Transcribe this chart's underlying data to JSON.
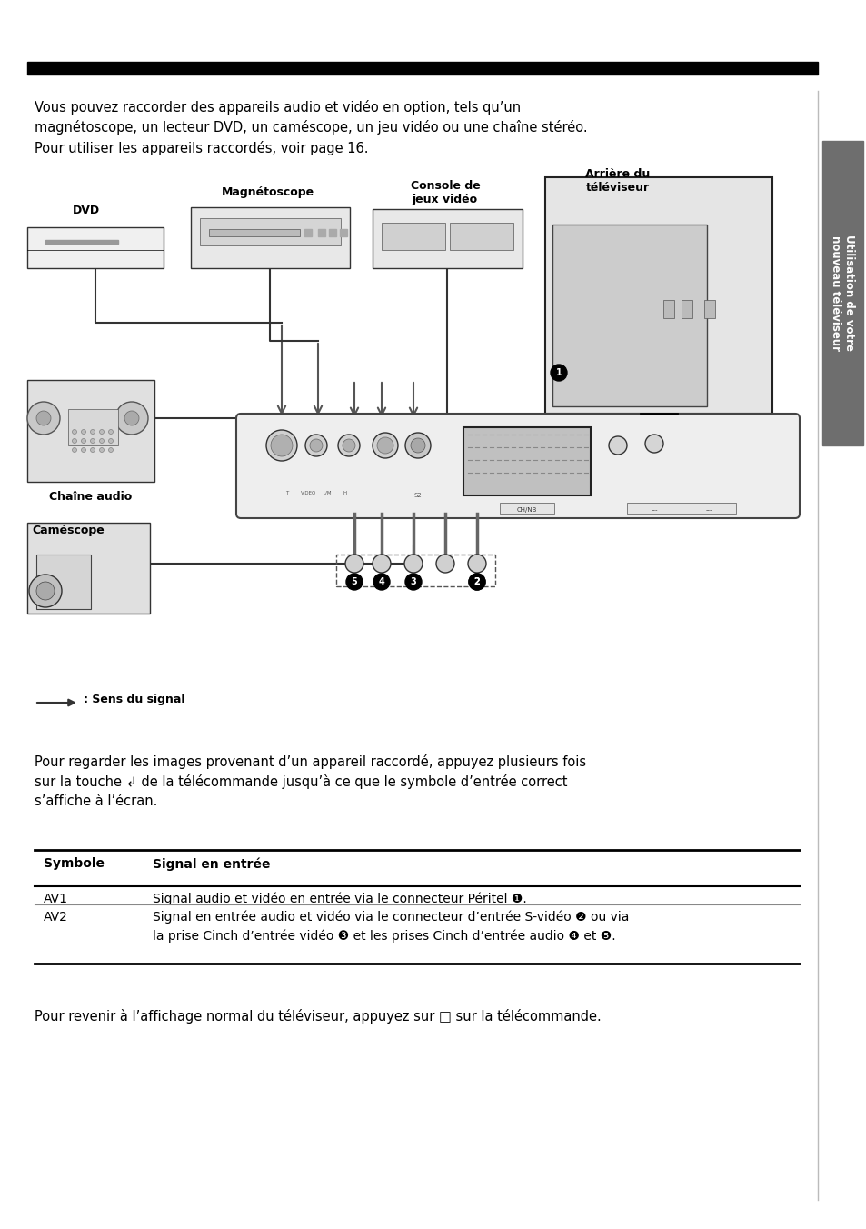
{
  "page_bg": "#ffffff",
  "sidebar_bg": "#6e6e6e",
  "sidebar_text": "Utilisation de votre\nnouveau téléviseur",
  "sidebar_text_color": "#ffffff",
  "top_bar_color": "#000000",
  "intro_text": "Vous pouvez raccorder des appareils audio et vidéo en option, tels qu’un\nmagnétoscope, un lecteur DVD, un caméscope, un jeu vidéo ou une chaîne stéréo.\nPour utiliser les appareils raccordés, voir page 16.",
  "section2_text": "Pour regarder les images provenant d’un appareil raccordé, appuyez plusieurs fois\nsur la touche ↲ de la télécommande jusqu’à ce que le symbole d’entrée correct\ns’affiche à l’écran.",
  "table_header": [
    "Symbole",
    "Signal en entrée"
  ],
  "table_rows": [
    [
      "AV1",
      "Signal audio et vidéo en entrée via le connecteur Péritel ❶."
    ],
    [
      "AV2",
      "Signal en entrée audio et vidéo via le connecteur d’entrée S-vidéo ❷ ou via\nla prise Cinch d’entrée vidéo ❸ et les prises Cinch d’entrée audio ❹ et ❺."
    ]
  ],
  "footer_text": "Pour revenir à l’affichage normal du téléviseur, appuyez sur □ sur la télécommande.",
  "sens_text": ": Sens du signal"
}
